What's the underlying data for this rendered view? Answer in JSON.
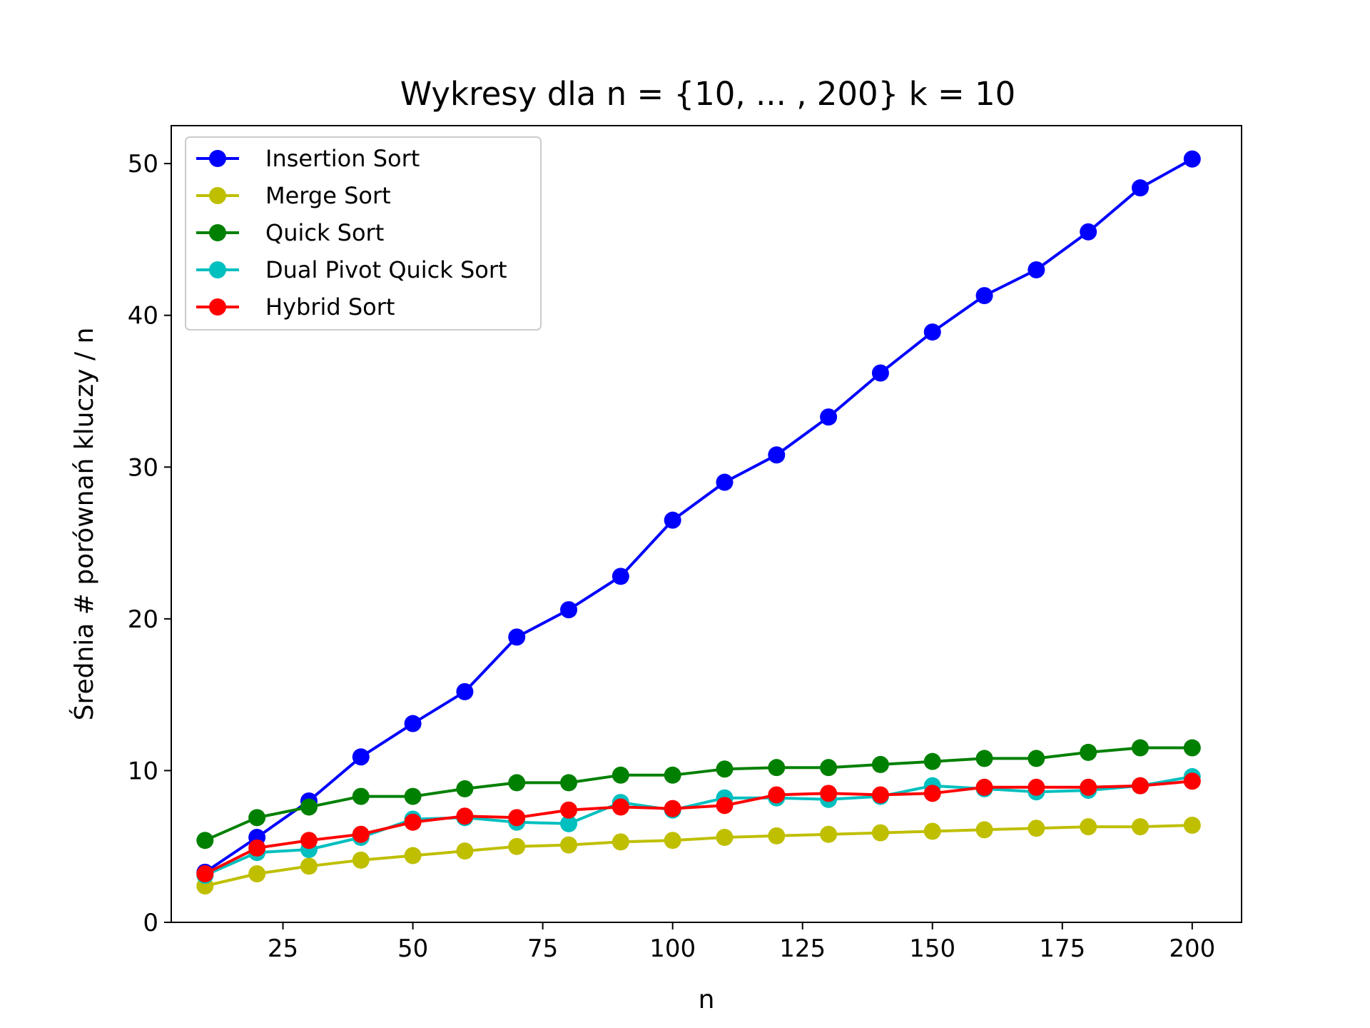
{
  "chart_data": {
    "type": "line",
    "title": "Wykresy dla n = {10, ... , 200} k = 10",
    "xlabel": "n",
    "ylabel": "Średnia # porównań kluczy / n",
    "xlim": [
      3.5,
      209.5
    ],
    "ylim": [
      0,
      52.5
    ],
    "xticks": [
      25,
      50,
      75,
      100,
      125,
      150,
      175,
      200
    ],
    "yticks": [
      0,
      10,
      20,
      30,
      40,
      50
    ],
    "legend_position": "top-left",
    "grid": false,
    "x": [
      10,
      20,
      30,
      40,
      50,
      60,
      70,
      80,
      90,
      100,
      110,
      120,
      130,
      140,
      150,
      160,
      170,
      180,
      190,
      200
    ],
    "series": [
      {
        "name": "Insertion Sort",
        "color": "#0000ff",
        "values": [
          3.3,
          5.6,
          8.0,
          10.9,
          13.1,
          15.2,
          18.8,
          20.6,
          22.8,
          26.5,
          29.0,
          30.8,
          33.3,
          36.2,
          38.9,
          41.3,
          43.0,
          45.5,
          48.4,
          50.3
        ]
      },
      {
        "name": "Merge Sort",
        "color": "#bfbf00",
        "values": [
          2.4,
          3.2,
          3.7,
          4.1,
          4.4,
          4.7,
          5.0,
          5.1,
          5.3,
          5.4,
          5.6,
          5.7,
          5.8,
          5.9,
          6.0,
          6.1,
          6.2,
          6.3,
          6.3,
          6.4
        ]
      },
      {
        "name": "Quick Sort",
        "color": "#008000",
        "values": [
          5.4,
          6.9,
          7.6,
          8.3,
          8.3,
          8.8,
          9.2,
          9.2,
          9.7,
          9.7,
          10.1,
          10.2,
          10.2,
          10.4,
          10.6,
          10.8,
          10.8,
          11.2,
          11.5,
          11.5
        ]
      },
      {
        "name": "Dual Pivot Quick Sort",
        "color": "#00bfbf",
        "values": [
          3.1,
          4.6,
          4.8,
          5.6,
          6.8,
          6.9,
          6.6,
          6.5,
          7.9,
          7.4,
          8.2,
          8.2,
          8.1,
          8.3,
          9.0,
          8.8,
          8.6,
          8.7,
          9.0,
          9.6
        ]
      },
      {
        "name": "Hybrid Sort",
        "color": "#ff0000",
        "values": [
          3.2,
          4.9,
          5.4,
          5.8,
          6.6,
          7.0,
          6.9,
          7.4,
          7.6,
          7.5,
          7.7,
          8.4,
          8.5,
          8.4,
          8.5,
          8.9,
          8.9,
          8.9,
          9.0,
          9.3
        ]
      }
    ]
  }
}
